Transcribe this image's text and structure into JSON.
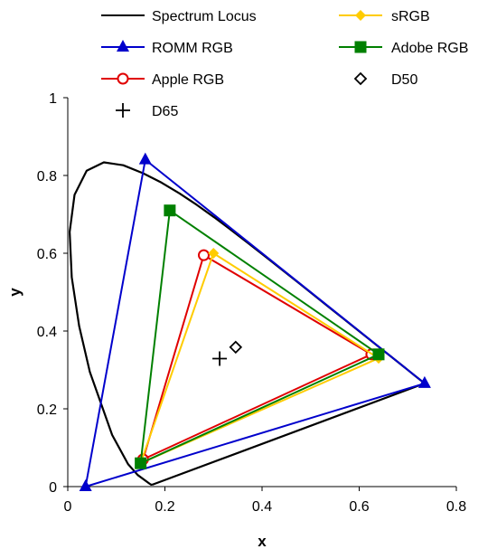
{
  "chart_data": {
    "type": "scatter",
    "title": "",
    "xlabel": "x",
    "ylabel": "y",
    "xlim": [
      0,
      0.8
    ],
    "ylim": [
      0,
      1
    ],
    "xticks": [
      0,
      0.2,
      0.4,
      0.6,
      0.8
    ],
    "yticks": [
      0,
      0.2,
      0.4,
      0.6,
      0.8,
      1
    ],
    "xtick_labels": [
      "0",
      "0.2",
      "0.4",
      "0.6",
      "0.8"
    ],
    "ytick_labels": [
      "0",
      "0.2",
      "0.4",
      "0.6",
      "0.8",
      "1"
    ],
    "grid": false,
    "legend_position": "top",
    "series": [
      {
        "name": "Spectrum Locus",
        "style": "line",
        "marker": "none",
        "color": "#000000",
        "points": [
          [
            0.1741,
            0.005
          ],
          [
            0.1738,
            0.0049
          ],
          [
            0.1733,
            0.0048
          ],
          [
            0.1726,
            0.0048
          ],
          [
            0.1714,
            0.0051
          ],
          [
            0.1689,
            0.0069
          ],
          [
            0.144,
            0.0297
          ],
          [
            0.1241,
            0.0578
          ],
          [
            0.0913,
            0.1327
          ],
          [
            0.0454,
            0.295
          ],
          [
            0.0235,
            0.4127
          ],
          [
            0.0082,
            0.5384
          ],
          [
            0.0039,
            0.6548
          ],
          [
            0.0139,
            0.7502
          ],
          [
            0.0389,
            0.812
          ],
          [
            0.0743,
            0.8338
          ],
          [
            0.1142,
            0.8262
          ],
          [
            0.1547,
            0.8059
          ],
          [
            0.1929,
            0.7816
          ],
          [
            0.2296,
            0.7543
          ],
          [
            0.2658,
            0.7243
          ],
          [
            0.3016,
            0.6923
          ],
          [
            0.3373,
            0.6589
          ],
          [
            0.3731,
            0.6245
          ],
          [
            0.4087,
            0.5896
          ],
          [
            0.4441,
            0.5547
          ],
          [
            0.4788,
            0.5202
          ],
          [
            0.5125,
            0.4866
          ],
          [
            0.5448,
            0.4544
          ],
          [
            0.5752,
            0.4242
          ],
          [
            0.6029,
            0.3965
          ],
          [
            0.627,
            0.3725
          ],
          [
            0.6482,
            0.3514
          ],
          [
            0.6658,
            0.334
          ],
          [
            0.6801,
            0.3197
          ],
          [
            0.6915,
            0.3083
          ],
          [
            0.7006,
            0.2993
          ],
          [
            0.714,
            0.2859
          ],
          [
            0.7347,
            0.2653
          ],
          [
            0.1741,
            0.005
          ]
        ]
      },
      {
        "name": "ROMM RGB",
        "style": "line",
        "marker": "triangle",
        "color": "#0000cc",
        "points": [
          [
            0.7347,
            0.2653
          ],
          [
            0.1596,
            0.8404
          ],
          [
            0.0366,
            0.0001
          ],
          [
            0.7347,
            0.2653
          ]
        ]
      },
      {
        "name": "Apple RGB",
        "style": "line",
        "marker": "circle-open",
        "color": "#e00000",
        "points": [
          [
            0.625,
            0.34
          ],
          [
            0.28,
            0.595
          ],
          [
            0.155,
            0.07
          ],
          [
            0.625,
            0.34
          ]
        ]
      },
      {
        "name": "sRGB",
        "style": "line",
        "marker": "diamond",
        "color": "#ffcc00",
        "points": [
          [
            0.64,
            0.33
          ],
          [
            0.3,
            0.6
          ],
          [
            0.15,
            0.06
          ],
          [
            0.64,
            0.33
          ]
        ]
      },
      {
        "name": "Adobe RGB",
        "style": "line",
        "marker": "square",
        "color": "#008000",
        "points": [
          [
            0.64,
            0.34
          ],
          [
            0.21,
            0.71
          ],
          [
            0.15,
            0.06
          ],
          [
            0.64,
            0.34
          ]
        ]
      },
      {
        "name": "D50",
        "style": "marker",
        "marker": "diamond-open",
        "color": "#000000",
        "points": [
          [
            0.3457,
            0.3585
          ]
        ]
      },
      {
        "name": "D65",
        "style": "marker",
        "marker": "plus",
        "color": "#000000",
        "points": [
          [
            0.3127,
            0.329
          ]
        ]
      }
    ],
    "legend": [
      {
        "label": "Spectrum Locus",
        "series": 0
      },
      {
        "label": "sRGB",
        "series": 3
      },
      {
        "label": "ROMM RGB",
        "series": 1
      },
      {
        "label": "Adobe RGB",
        "series": 4
      },
      {
        "label": "Apple RGB",
        "series": 2
      },
      {
        "label": "D50",
        "series": 5
      },
      {
        "label": "D65",
        "series": 6
      }
    ]
  }
}
